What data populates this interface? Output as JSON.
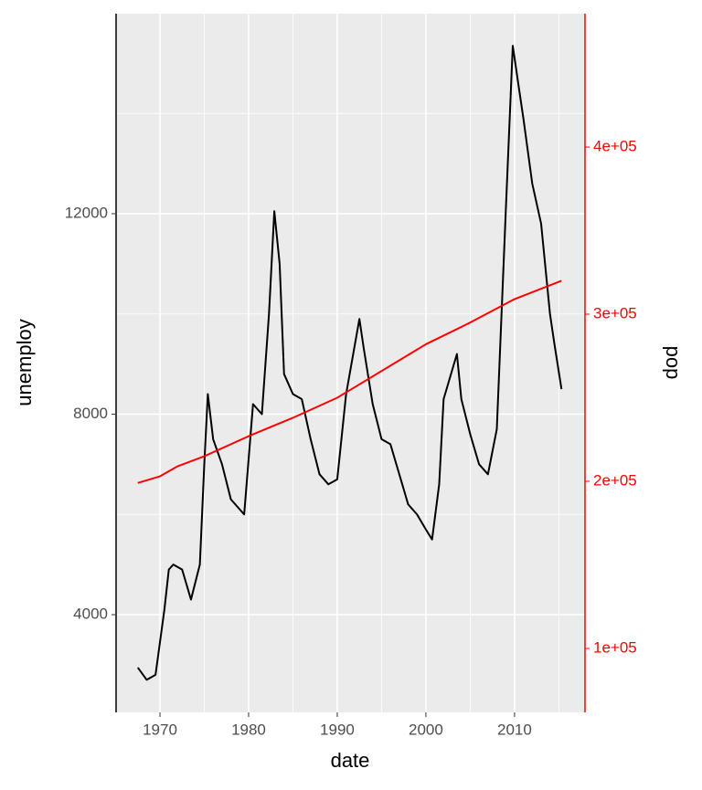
{
  "chart_data": {
    "type": "line",
    "xlabel": "date",
    "x": [
      1967.5,
      1968.5,
      1969.5,
      1970.5,
      1971,
      1971.5,
      1972.5,
      1973.5,
      1974.5,
      1975.0,
      1975.4,
      1976,
      1977,
      1978,
      1979,
      1979.5,
      1980.5,
      1981.5,
      1982.3,
      1982.9,
      1983.5,
      1984.0,
      1985,
      1986,
      1987,
      1988,
      1989,
      1990,
      1991,
      1992.5,
      1993,
      1994,
      1995,
      1996,
      1997,
      1998,
      1999,
      2000,
      2000.7,
      2001.5,
      2002,
      2003.5,
      2004,
      2005,
      2006,
      2007,
      2008,
      2009,
      2009.8,
      2010.5,
      2011,
      2012,
      2013,
      2014,
      2014.5,
      2015.3
    ],
    "series": [
      {
        "name": "unemploy",
        "color": "#000000",
        "values": [
          2944,
          2700,
          2800,
          4100,
          4900,
          5000,
          4900,
          4300,
          5000,
          7000,
          8400,
          7500,
          7000,
          6300,
          6100,
          6000,
          8200,
          8000,
          10000,
          12050,
          11000,
          8800,
          8400,
          8300,
          7500,
          6800,
          6600,
          6700,
          8400,
          9900,
          9300,
          8200,
          7500,
          7400,
          6800,
          6200,
          6000,
          5700,
          5500,
          6600,
          8300,
          9200,
          8300,
          7600,
          7000,
          6800,
          7700,
          12000,
          15350,
          14500,
          13900,
          12600,
          11800,
          10000,
          9400,
          8500
        ]
      },
      {
        "name": "dod",
        "color": "#ff0000",
        "axis": "y2",
        "x": [
          1967.5,
          1970,
          1972,
          1975,
          1980,
          1985,
          1990,
          1995,
          2000,
          2005,
          2010,
          2015.3
        ],
        "values": [
          199000,
          203000,
          209000,
          215000,
          227000,
          238000,
          250000,
          266000,
          282000,
          295000,
          309000,
          320000
        ]
      }
    ],
    "xlim": [
      1965.05,
      2017.95
    ],
    "xticks": [
      1970,
      1980,
      1990,
      2000,
      2010
    ],
    "ylim": [
      2050,
      15990
    ],
    "yticks": [
      4000,
      8000,
      12000
    ],
    "y2lim": [
      61750,
      479800
    ],
    "y2ticks": [
      {
        "value": 100000,
        "label": "1e+05"
      },
      {
        "value": 200000,
        "label": "2e+05"
      },
      {
        "value": 300000,
        "label": "3e+05"
      },
      {
        "value": 400000,
        "label": "4e+05"
      }
    ],
    "y2color": "#ff0000",
    "grid": true
  }
}
